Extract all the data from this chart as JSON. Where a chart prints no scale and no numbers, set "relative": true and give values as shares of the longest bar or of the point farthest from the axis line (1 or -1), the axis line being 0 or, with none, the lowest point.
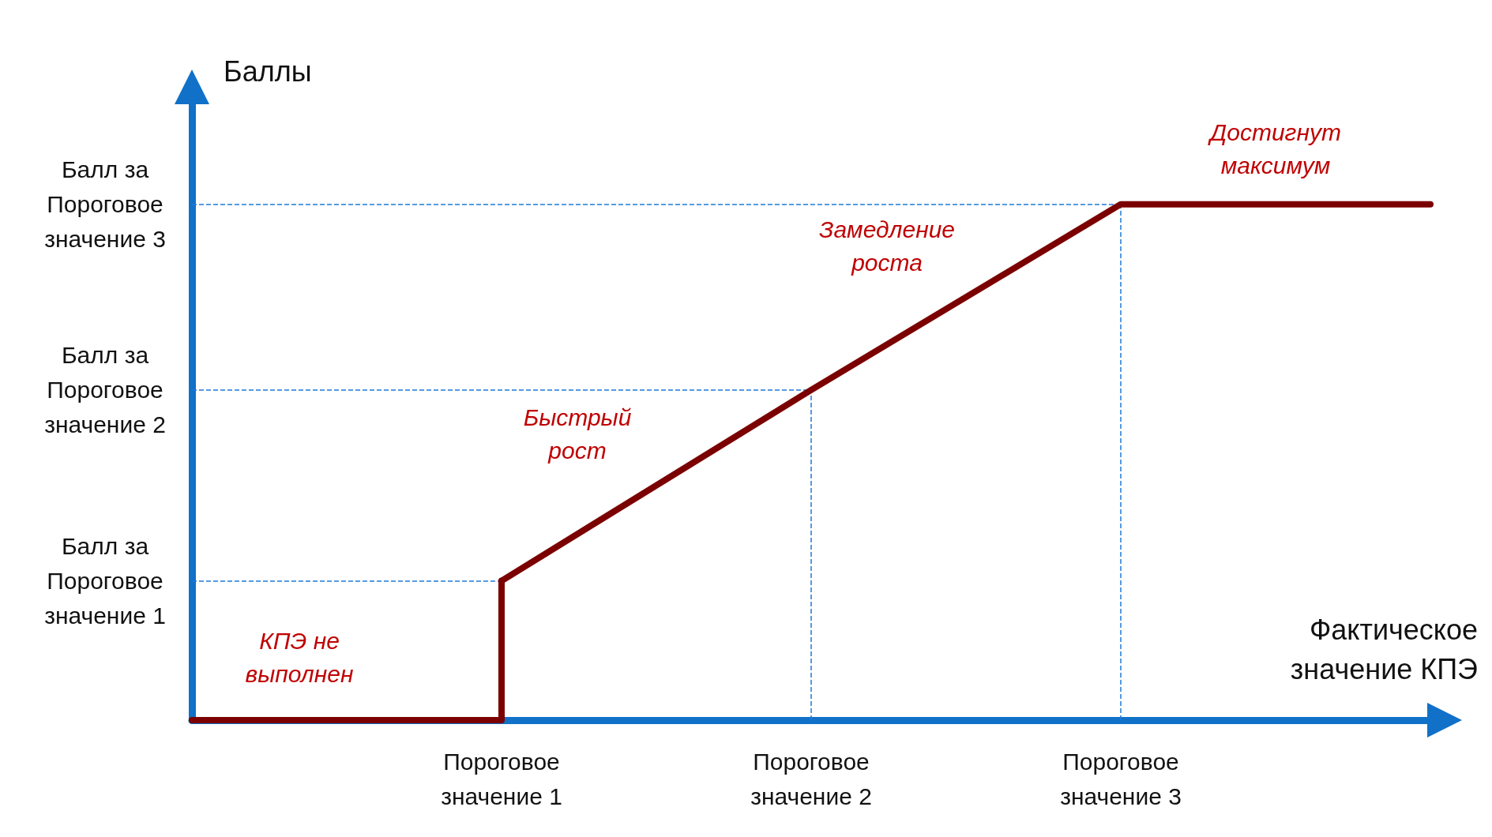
{
  "chart_data": {
    "type": "line",
    "relative": true,
    "tick_labels": "x",
    "xlabel": "Фактическое значение КПЭ",
    "ylabel": "Баллы",
    "categories": [
      null,
      "Пороговое значение 1",
      "Пороговое значение 2",
      "Пороговое значение 3",
      null
    ],
    "series": [
      {
        "type": "step",
        "color": "#7b0000",
        "values": [
          0,
          0.27,
          null,
          null,
          null
        ]
      },
      {
        "color": "#7b0000",
        "values": [
          null,
          0.27,
          0.64,
          1,
          1
        ]
      }
    ],
    "marker": "none",
    "line_style": "solid",
    "grid": false,
    "ref_lines": [
      {
        "axis": "x",
        "value": "Пороговое значение 2",
        "color": "#1f7ad6",
        "line_style": "dashed"
      },
      {
        "axis": "x",
        "value": "Пороговое значение 3",
        "color": "#1f7ad6",
        "line_style": "dashed"
      },
      {
        "axis": "y",
        "value": 0.27,
        "label": "Балл за Пороговое значение 1",
        "color": "#1f7ad6",
        "line_style": "dashed"
      },
      {
        "axis": "y",
        "value": 0.64,
        "label": "Балл за Пороговое значение 2",
        "color": "#1f7ad6",
        "line_style": "dashed"
      },
      {
        "axis": "y",
        "value": 1,
        "label": "Балл за Пороговое значение 3",
        "color": "#1f7ad6",
        "line_style": "dashed"
      }
    ],
    "annotations": [
      "КПЭ не выполнен",
      "Быстрый рост",
      "Замедление роста",
      "Достигнут максимум"
    ]
  }
}
